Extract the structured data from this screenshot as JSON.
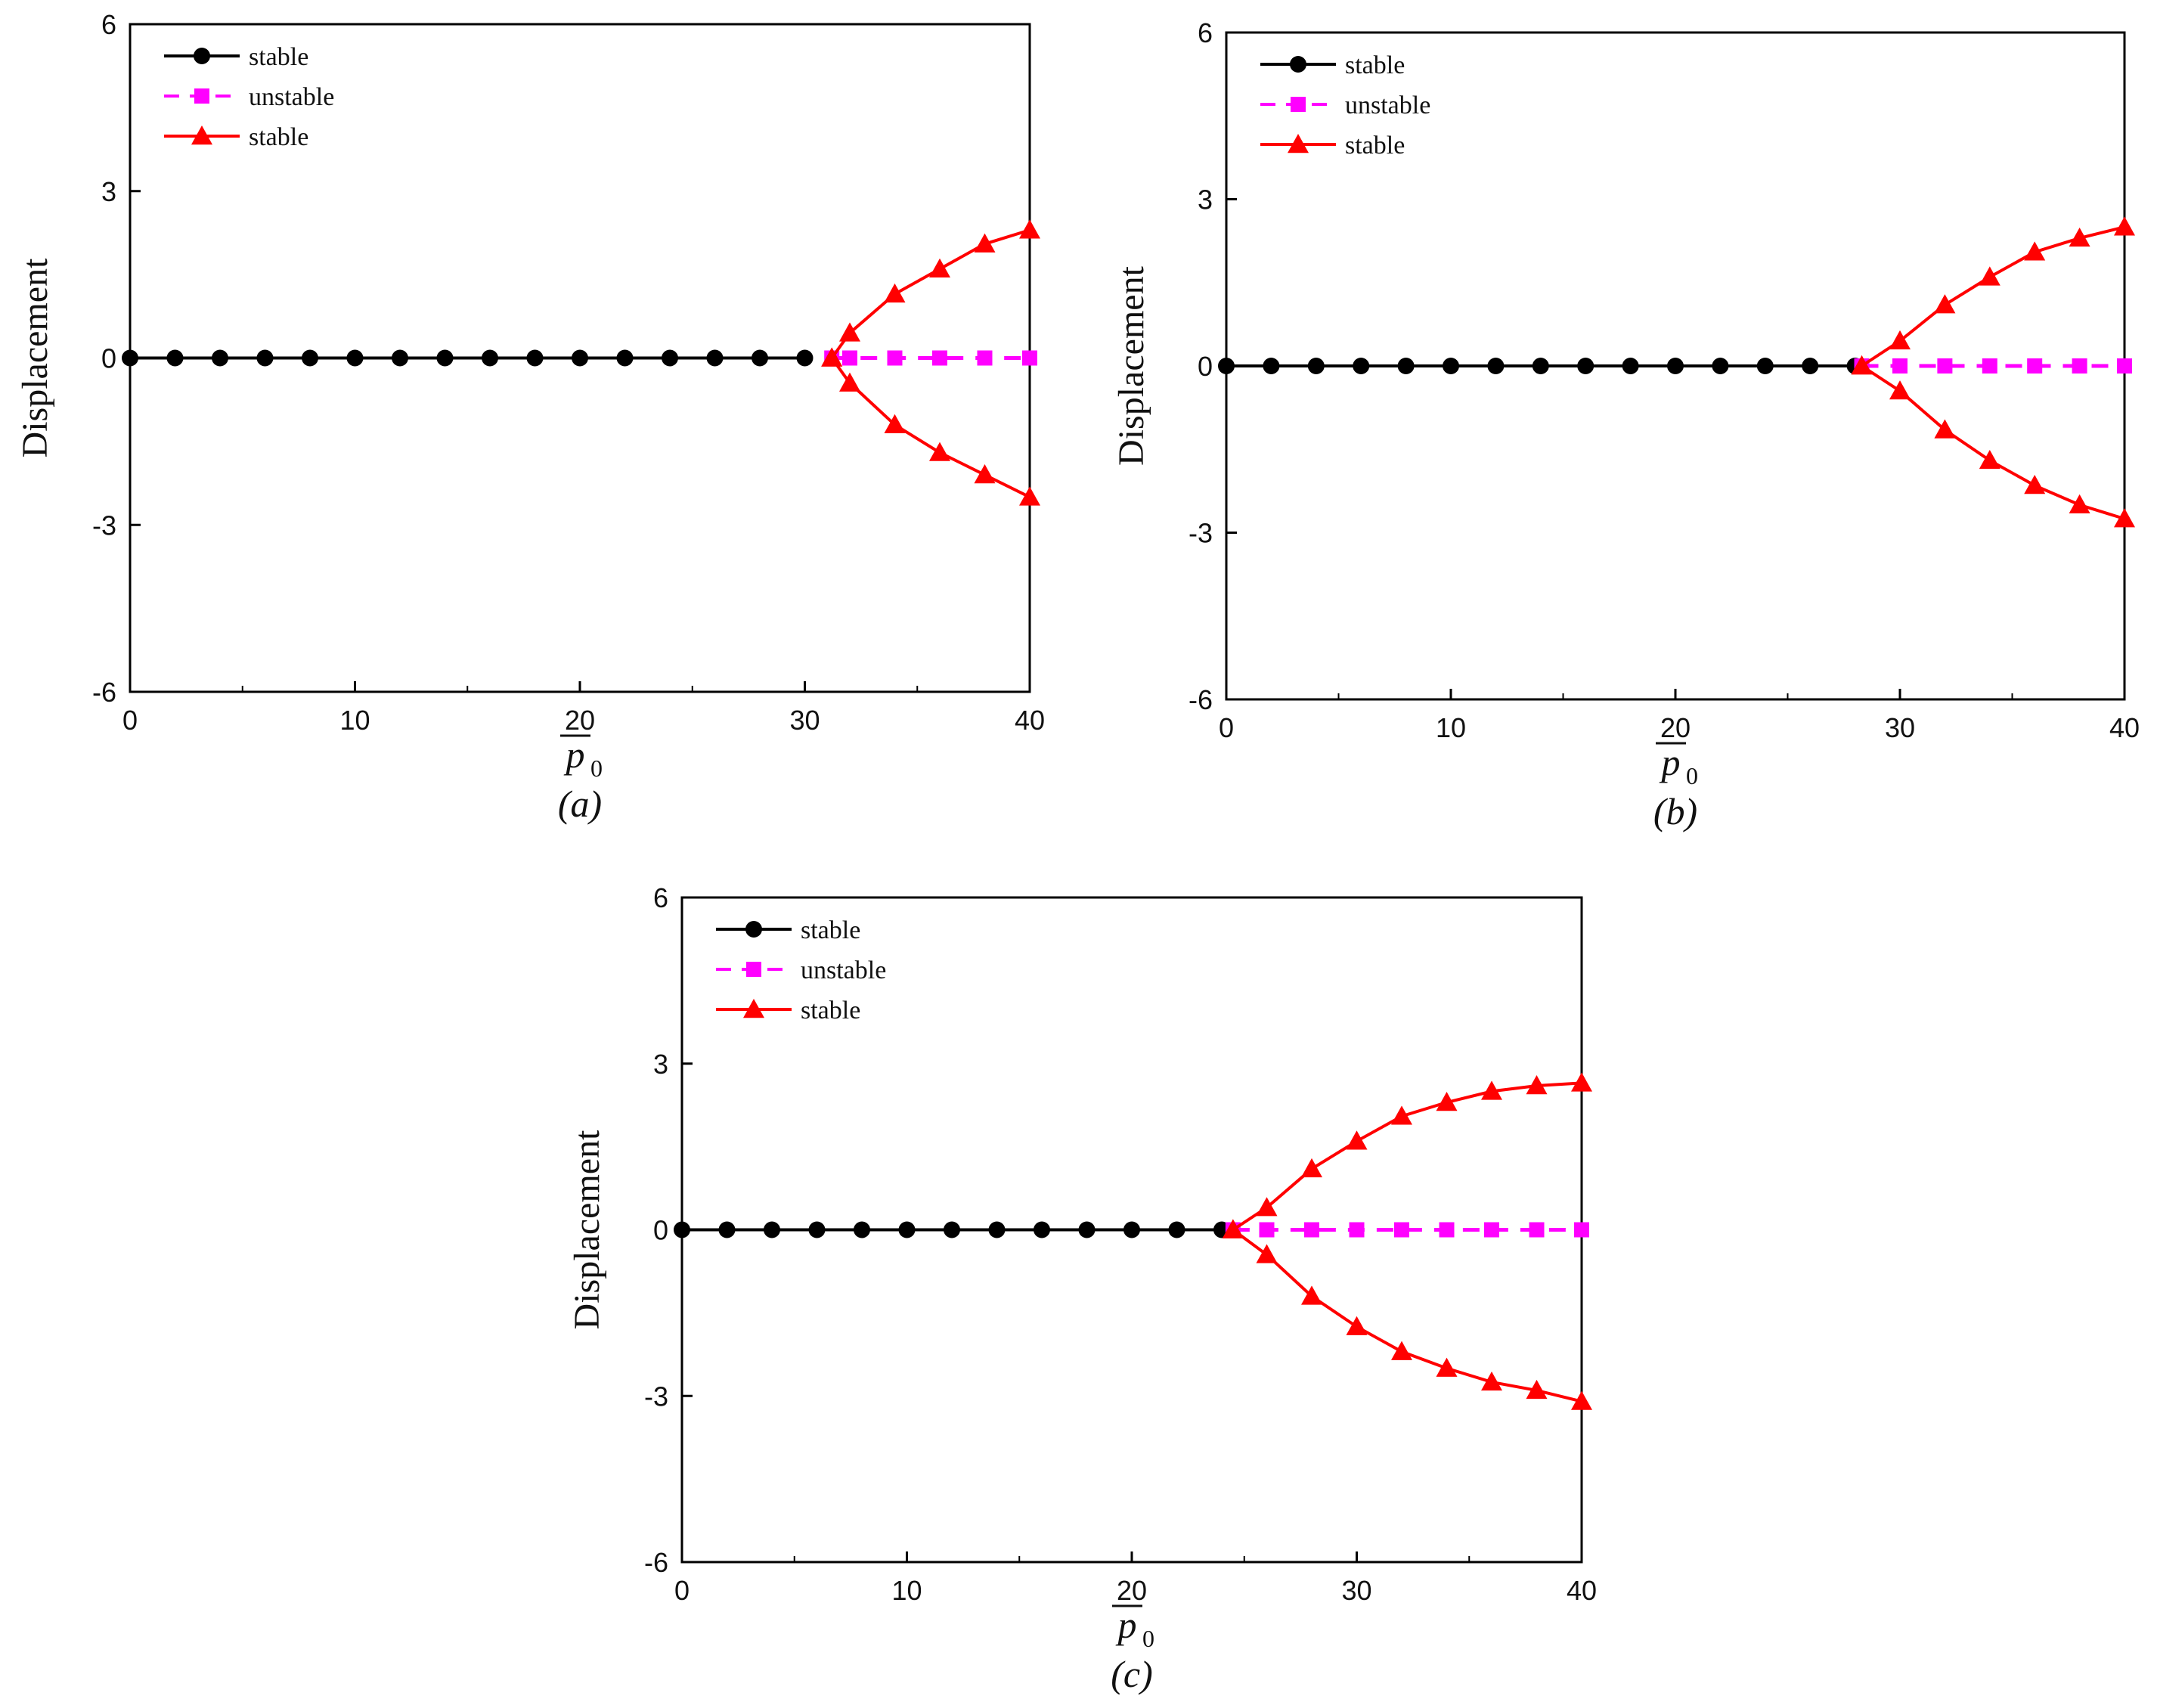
{
  "chart_data": [
    {
      "type": "line",
      "panel_label": "a",
      "title": "",
      "xlabel": "p",
      "xlabel_subscript": "0",
      "ylabel": "Displacement",
      "xlim": [
        0,
        40
      ],
      "ylim": [
        -6,
        6
      ],
      "xticks": [
        "0",
        "10",
        "20",
        "30",
        "40"
      ],
      "yticks": [
        "6",
        "3",
        "0",
        "-3",
        "-6"
      ],
      "legend": [
        "stable",
        "unstable",
        "stable"
      ],
      "legend_position": "top-left",
      "series": [
        {
          "name": "stable",
          "color": "#000000",
          "marker": "circle",
          "style": "solid",
          "x": [
            0,
            2,
            4,
            6,
            8,
            10,
            12,
            14,
            16,
            18,
            20,
            22,
            24,
            26,
            28,
            30
          ],
          "y": [
            0,
            0,
            0,
            0,
            0,
            0,
            0,
            0,
            0,
            0,
            0,
            0,
            0,
            0,
            0,
            0
          ]
        },
        {
          "name": "unstable",
          "color": "#ff00ff",
          "marker": "square",
          "style": "dashed",
          "x": [
            31.2,
            32,
            34,
            36,
            38,
            40
          ],
          "y": [
            0,
            0,
            0,
            0,
            0,
            0
          ]
        },
        {
          "name": "stable",
          "color": "#ff0000",
          "marker": "triangle",
          "style": "solid",
          "x": [
            31.2,
            32,
            34,
            36,
            38,
            40
          ],
          "y": [
            0,
            0.45,
            1.15,
            1.6,
            2.05,
            2.3
          ]
        },
        {
          "name": "stable",
          "color": "#ff0000",
          "marker": "triangle",
          "style": "solid",
          "legend_hidden": true,
          "x": [
            31.2,
            32,
            34,
            36,
            38,
            40
          ],
          "y": [
            0,
            -0.45,
            -1.2,
            -1.7,
            -2.1,
            -2.5
          ]
        }
      ]
    },
    {
      "type": "line",
      "panel_label": "b",
      "title": "",
      "xlabel": "p",
      "xlabel_subscript": "0",
      "ylabel": "Displacement",
      "xlim": [
        0,
        40
      ],
      "ylim": [
        -6,
        6
      ],
      "xticks": [
        "0",
        "10",
        "20",
        "30",
        "40"
      ],
      "yticks": [
        "6",
        "3",
        "0",
        "-3",
        "-6"
      ],
      "legend": [
        "stable",
        "unstable",
        "stable"
      ],
      "legend_position": "top-left",
      "series": [
        {
          "name": "stable",
          "color": "#000000",
          "marker": "circle",
          "style": "solid",
          "x": [
            0,
            2,
            4,
            6,
            8,
            10,
            12,
            14,
            16,
            18,
            20,
            22,
            24,
            26,
            28
          ],
          "y": [
            0,
            0,
            0,
            0,
            0,
            0,
            0,
            0,
            0,
            0,
            0,
            0,
            0,
            0,
            0
          ]
        },
        {
          "name": "unstable",
          "color": "#ff00ff",
          "marker": "square",
          "style": "dashed",
          "x": [
            28.3,
            30,
            32,
            34,
            36,
            38,
            40
          ],
          "y": [
            0,
            0,
            0,
            0,
            0,
            0,
            0
          ]
        },
        {
          "name": "stable",
          "color": "#ff0000",
          "marker": "triangle",
          "style": "solid",
          "x": [
            28.3,
            30,
            32,
            34,
            36,
            38,
            40
          ],
          "y": [
            0,
            0.45,
            1.1,
            1.6,
            2.05,
            2.3,
            2.5
          ]
        },
        {
          "name": "stable",
          "color": "#ff0000",
          "marker": "triangle",
          "style": "solid",
          "legend_hidden": true,
          "x": [
            28.3,
            30,
            32,
            34,
            36,
            38,
            40
          ],
          "y": [
            0,
            -0.45,
            -1.15,
            -1.7,
            -2.15,
            -2.5,
            -2.75
          ]
        }
      ]
    },
    {
      "type": "line",
      "panel_label": "c",
      "title": "",
      "xlabel": "p",
      "xlabel_subscript": "0",
      "ylabel": "Displacement",
      "xlim": [
        0,
        40
      ],
      "ylim": [
        -6,
        6
      ],
      "xticks": [
        "0",
        "10",
        "20",
        "30",
        "40"
      ],
      "yticks": [
        "6",
        "3",
        "0",
        "-3",
        "-6"
      ],
      "legend": [
        "stable",
        "unstable",
        "stable"
      ],
      "legend_position": "top-left",
      "series": [
        {
          "name": "stable",
          "color": "#000000",
          "marker": "circle",
          "style": "solid",
          "x": [
            0,
            2,
            4,
            6,
            8,
            10,
            12,
            14,
            16,
            18,
            20,
            22,
            24
          ],
          "y": [
            0,
            0,
            0,
            0,
            0,
            0,
            0,
            0,
            0,
            0,
            0,
            0,
            0
          ]
        },
        {
          "name": "unstable",
          "color": "#ff00ff",
          "marker": "square",
          "style": "dashed",
          "x": [
            24.5,
            26,
            28,
            30,
            32,
            34,
            36,
            38,
            40
          ],
          "y": [
            0,
            0,
            0,
            0,
            0,
            0,
            0,
            0,
            0
          ]
        },
        {
          "name": "stable",
          "color": "#ff0000",
          "marker": "triangle",
          "style": "solid",
          "x": [
            24.5,
            26,
            28,
            30,
            32,
            34,
            36,
            38,
            40
          ],
          "y": [
            0,
            0.4,
            1.1,
            1.6,
            2.05,
            2.3,
            2.5,
            2.6,
            2.65
          ]
        },
        {
          "name": "stable",
          "color": "#ff0000",
          "marker": "triangle",
          "style": "solid",
          "legend_hidden": true,
          "x": [
            24.5,
            26,
            28,
            30,
            32,
            34,
            36,
            38,
            40
          ],
          "y": [
            0,
            -0.45,
            -1.2,
            -1.75,
            -2.2,
            -2.5,
            -2.75,
            -2.9,
            -3.1
          ]
        }
      ]
    }
  ]
}
